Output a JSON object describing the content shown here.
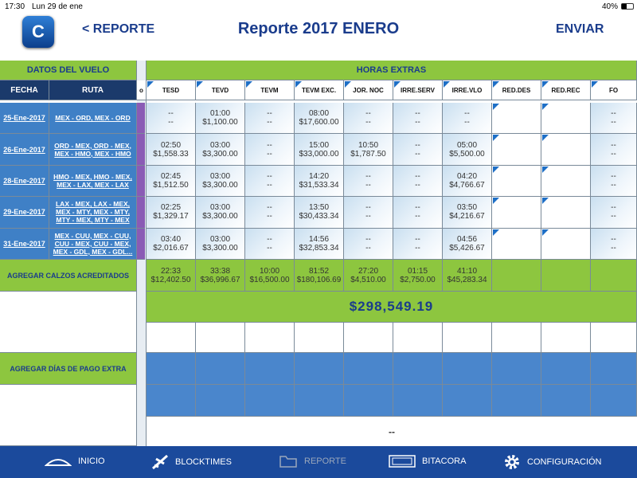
{
  "status_bar": {
    "time": "17:30",
    "date": "Lun 29 de ene",
    "battery": "40%"
  },
  "nav": {
    "back": "< REPORTE",
    "title": "Reporte 2017 ENERO",
    "action": "ENVIAR"
  },
  "table": {
    "left_header": "DATOS DEL VUELO",
    "right_header": "HORAS EXTRAS",
    "columns": [
      "FECHA",
      "RUTA"
    ],
    "partial_column": "o",
    "extra_columns": [
      "TESD",
      "TEVD",
      "TEVM",
      "TEVM EXC.",
      "JOR. NOC",
      "IRRE.SERV",
      "IRRE.VLO",
      "RED.DES",
      "RED.REC",
      "FO"
    ],
    "rows": [
      {
        "date": "25-Ene-2017",
        "route": "MEX - ORD, MEX - ORD",
        "cells": [
          [
            "--",
            "--"
          ],
          [
            "01:00",
            "$1,100.00"
          ],
          [
            "--",
            "--"
          ],
          [
            "08:00",
            "$17,600.00"
          ],
          [
            "--",
            "--"
          ],
          [
            "--",
            "--"
          ],
          [
            "--",
            "--"
          ],
          null,
          null,
          [
            "--",
            "--"
          ]
        ]
      },
      {
        "date": "26-Ene-2017",
        "route": "ORD - MEX, ORD - MEX, MEX - HMO, MEX - HMO",
        "cells": [
          [
            "02:50",
            "$1,558.33"
          ],
          [
            "03:00",
            "$3,300.00"
          ],
          [
            "--",
            "--"
          ],
          [
            "15:00",
            "$33,000.00"
          ],
          [
            "10:50",
            "$1,787.50"
          ],
          [
            "--",
            "--"
          ],
          [
            "05:00",
            "$5,500.00"
          ],
          null,
          null,
          [
            "--",
            "--"
          ]
        ]
      },
      {
        "date": "28-Ene-2017",
        "route": "HMO - MEX, HMO - MEX, MEX - LAX, MEX - LAX",
        "cells": [
          [
            "02:45",
            "$1,512.50"
          ],
          [
            "03:00",
            "$3,300.00"
          ],
          [
            "--",
            "--"
          ],
          [
            "14:20",
            "$31,533.34"
          ],
          [
            "--",
            "--"
          ],
          [
            "--",
            "--"
          ],
          [
            "04:20",
            "$4,766.67"
          ],
          null,
          null,
          [
            "--",
            "--"
          ]
        ]
      },
      {
        "date": "29-Ene-2017",
        "route": "LAX - MEX, LAX - MEX, MEX - MTY, MEX - MTY, MTY - MEX, MTY - MEX",
        "cells": [
          [
            "02:25",
            "$1,329.17"
          ],
          [
            "03:00",
            "$3,300.00"
          ],
          [
            "--",
            "--"
          ],
          [
            "13:50",
            "$30,433.34"
          ],
          [
            "--",
            "--"
          ],
          [
            "--",
            "--"
          ],
          [
            "03:50",
            "$4,216.67"
          ],
          null,
          null,
          [
            "--",
            "--"
          ]
        ]
      },
      {
        "date": "31-Ene-2017",
        "route": "MEX - CUU, MEX - CUU, CUU - MEX, CUU - MEX, MEX - GDL, MEX - GDL...",
        "cells": [
          [
            "03:40",
            "$2,016.67"
          ],
          [
            "03:00",
            "$3,300.00"
          ],
          [
            "--",
            "--"
          ],
          [
            "14:56",
            "$32,853.34"
          ],
          [
            "--",
            "--"
          ],
          [
            "--",
            "--"
          ],
          [
            "04:56",
            "$5,426.67"
          ],
          null,
          null,
          [
            "--",
            "--"
          ]
        ]
      }
    ],
    "totals": {
      "label": "AGREGAR CALZOS ACREDITADOS",
      "cells": [
        [
          "22:33",
          "$12,402.50"
        ],
        [
          "33:38",
          "$36,996.67"
        ],
        [
          "10:00",
          "$16,500.00"
        ],
        [
          "81:52",
          "$180,106.69"
        ],
        [
          "27:20",
          "$4,510.00"
        ],
        [
          "01:15",
          "$2,750.00"
        ],
        [
          "41:10",
          "$45,283.34"
        ],
        null,
        null,
        null
      ]
    },
    "grand_total": "$298,549.19",
    "extra_days_label": "AGREGAR DÍAS DE PAGO EXTRA",
    "bottom_value": "--"
  },
  "tab_bar": [
    "INICIO",
    "BLOCKTIMES",
    "REPORTE",
    "BITACORA",
    "CONFIGURACIÓN"
  ]
}
